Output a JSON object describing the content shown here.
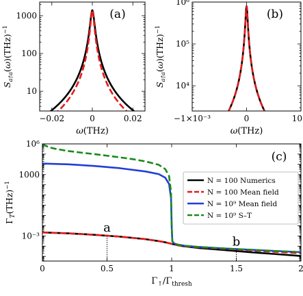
{
  "chart_data": [
    {
      "panel_label": "(a)",
      "type": "line",
      "xlabel": "ω(THz)",
      "ylabel": "S_{a†a}(ω)(THz)^{-1}",
      "x_range": [
        -0.026,
        0.026
      ],
      "y_range": [
        3,
        2300
      ],
      "y_scale": "log",
      "x_ticks": [
        -0.02,
        0,
        0.02
      ],
      "x_tick_labels": [
        "−0.02",
        "0",
        "0.02"
      ],
      "y_ticks": [
        10,
        100,
        1000
      ],
      "y_tick_labels": [
        "10",
        "100",
        "1000"
      ],
      "series": [
        {
          "color": "#000000",
          "dash": "solid",
          "peak": 1400,
          "gamma": 0.00095
        },
        {
          "color": "#e41a1c",
          "dash": "dashed",
          "peak": 1400,
          "gamma": 0.00078
        }
      ]
    },
    {
      "panel_label": "(b)",
      "type": "line",
      "xlabel": "ω(THz)",
      "ylabel": "S_{a†a}(ω)(THz)^{-1}",
      "x_range": [
        -0.001,
        0.001
      ],
      "y_range": [
        2500,
        1000000
      ],
      "y_scale": "log",
      "x_ticks": [
        -0.001,
        0,
        0.001
      ],
      "x_tick_labels": [
        "−1×10⁻³",
        "0",
        "10⁻³"
      ],
      "y_ticks": [
        10000,
        100000,
        1000000
      ],
      "y_tick_labels": [
        "10⁴",
        "10⁵",
        "10⁶"
      ],
      "series": [
        {
          "color": "#000000",
          "dash": "solid",
          "peak": 800000,
          "gamma": 1.85e-05
        },
        {
          "color": "#e41a1c",
          "dash": "dashed",
          "peak": 800000,
          "gamma": 1.85e-05
        }
      ]
    },
    {
      "panel_label": "(c)",
      "type": "line",
      "xlabel": "Γ↑/Γthresh",
      "ylabel": "Γ_T(THz)^{-1}",
      "x_range": [
        0,
        2
      ],
      "y_range": [
        3.5e-06,
        1000000
      ],
      "y_scale": "log",
      "x_ticks": [
        0,
        0.5,
        1,
        1.5,
        2
      ],
      "x_tick_labels": [
        "0",
        "0.5",
        "1",
        "1.5",
        "2"
      ],
      "y_ticks": [
        0.001,
        1000,
        1000000
      ],
      "y_tick_labels": [
        "10⁻³",
        "1000",
        "10⁶"
      ],
      "legend_position": "right",
      "annotations": [
        {
          "text": "a",
          "x": 0.5,
          "y": 0.00105
        },
        {
          "text": "b",
          "x": 1.5,
          "y": 4.5e-05
        }
      ],
      "series": [
        {
          "name": "N = 100 Numerics",
          "color": "#000000",
          "dash": "solid",
          "x": [
            0,
            0.2,
            0.4,
            0.6,
            0.8,
            0.9,
            0.95,
            1.0,
            1.05,
            1.1,
            1.2,
            1.4,
            1.6,
            1.8,
            2.0
          ],
          "y": [
            0.0022,
            0.0018,
            0.0013,
            0.00085,
            0.00048,
            0.00031,
            0.00024,
            0.00017,
            0.00012,
            9.5e-05,
            6.8e-05,
            4.2e-05,
            2.6e-05,
            1.7e-05,
            1.1e-05
          ]
        },
        {
          "name": "N = 100 Mean field",
          "color": "#e41a1c",
          "dash": "dashed",
          "x": [
            0,
            0.2,
            0.4,
            0.6,
            0.8,
            0.9,
            0.95,
            1.0,
            1.05,
            1.1,
            1.2,
            1.4,
            1.6,
            1.8,
            2.0
          ],
          "y": [
            0.0022,
            0.0018,
            0.0013,
            0.00085,
            0.00048,
            0.00031,
            0.00024,
            0.00017,
            0.00012,
            0.0001,
            7.8e-05,
            5.5e-05,
            3.8e-05,
            2.8e-05,
            2e-05
          ]
        },
        {
          "name": "N = 10⁹ Mean field",
          "color": "#1f3fd6",
          "dash": "solid",
          "x": [
            0,
            0.2,
            0.4,
            0.6,
            0.8,
            0.9,
            0.95,
            0.98,
            0.995,
            1.0,
            1.005,
            1.02,
            1.05,
            1.1,
            1.2,
            1.4,
            1.6,
            1.8,
            2.0
          ],
          "y": [
            12000,
            10000,
            7000,
            4200,
            2000,
            1100,
            500,
            120,
            5,
            0.01,
            0.0003,
            0.00018,
            0.00014,
            0.00011,
            8.5e-05,
            6e-05,
            4.5e-05,
            3.4e-05,
            2.6e-05
          ]
        },
        {
          "name": "N = 10⁹ S–T",
          "color": "#1a8a1a",
          "dash": "dashed",
          "x": [
            0.0,
            0.02,
            0.05,
            0.1,
            0.2,
            0.3,
            0.4,
            0.5,
            0.6,
            0.7,
            0.8,
            0.9,
            0.95,
            0.98,
            0.995,
            1.0,
            1.005,
            1.02,
            1.05,
            1.1,
            1.2,
            1.4,
            1.6,
            1.8,
            2.0
          ],
          "y": [
            1000000,
            700000,
            480000,
            330000,
            200000,
            140000,
            100000,
            70000,
            48000,
            32000,
            19000,
            9000,
            3500,
            700,
            20,
            0.01,
            0.0003,
            0.00018,
            0.00014,
            0.00011,
            8.5e-05,
            6e-05,
            4.5e-05,
            3.4e-05,
            2.6e-05
          ]
        }
      ]
    }
  ]
}
